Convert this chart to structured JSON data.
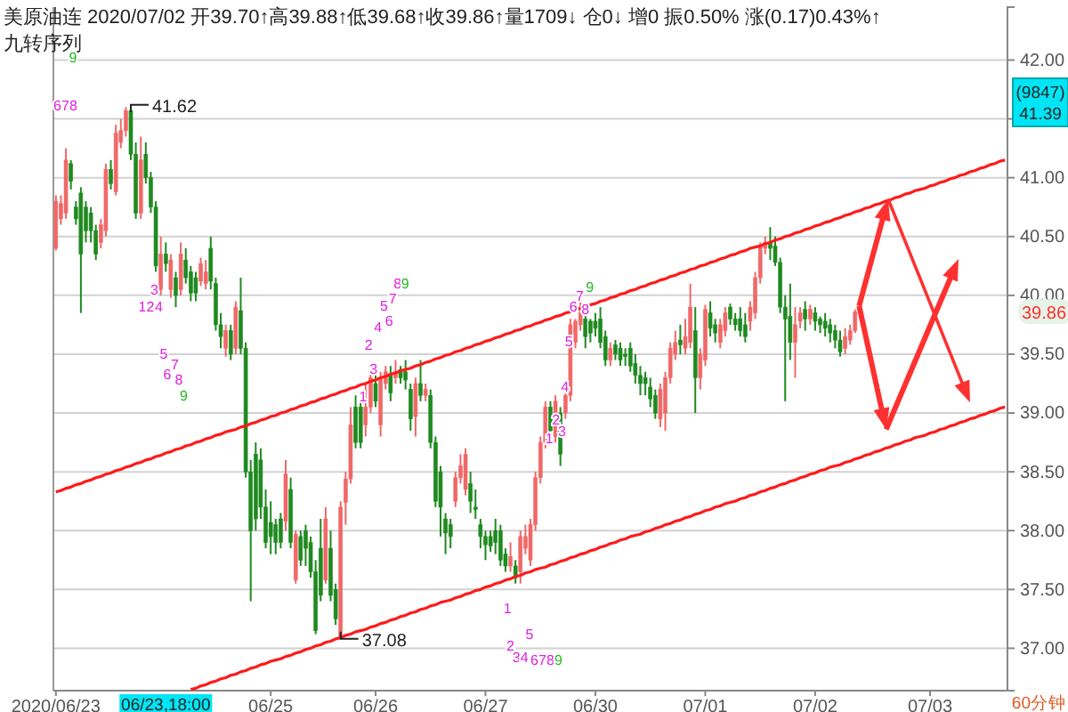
{
  "chart_data": {
    "type": "candlestick",
    "title": "美原油连 2020/07/02 开39.70↑高39.88↑低39.68↑收39.86↑量1709↓ 仓0↓ 增0 振0.50% 涨(0.17)0.43%↑",
    "subtitle": "九转序列",
    "categories": [
      "2020/06/23",
      null,
      null,
      null,
      null,
      null,
      null,
      null,
      null,
      null,
      null,
      null,
      null,
      null,
      null,
      null,
      null,
      null,
      null,
      null,
      null,
      null,
      null,
      null,
      null,
      null,
      null,
      null,
      null,
      null,
      null,
      null,
      null,
      null,
      null,
      null,
      null,
      null,
      null,
      null,
      null,
      null,
      null,
      "06/25",
      null,
      null,
      null,
      null,
      null,
      null,
      null,
      null,
      null,
      null,
      null,
      null,
      null,
      null,
      null,
      null,
      null,
      null,
      null,
      null,
      "06/26",
      null,
      null,
      null,
      null,
      null,
      null,
      null,
      null,
      null,
      null,
      null,
      null,
      null,
      null,
      null,
      null,
      null,
      null,
      null,
      null,
      null,
      "06/27",
      null,
      null,
      null,
      null,
      null,
      null,
      null,
      null,
      null,
      null,
      null,
      null,
      null,
      null,
      null,
      null,
      null,
      null,
      null,
      null,
      null,
      "06/30",
      null,
      null,
      null,
      null,
      null,
      null,
      null,
      null,
      null,
      null,
      null,
      null,
      null,
      null,
      null,
      null,
      null,
      null,
      null,
      null,
      null,
      "07/01",
      null,
      null,
      null,
      null,
      null,
      null,
      null,
      null,
      null,
      null,
      null,
      null,
      null,
      null,
      null,
      null,
      null,
      null,
      null,
      null,
      null,
      "07/02",
      null,
      null,
      null,
      null,
      null,
      null,
      null,
      null,
      null,
      null,
      null,
      null,
      null,
      null,
      null,
      null,
      null,
      null,
      null,
      null,
      null,
      null,
      "07/03",
      null,
      null,
      null,
      null,
      null,
      null,
      null,
      null,
      null,
      null,
      null,
      null,
      null,
      null,
      null
    ],
    "ohlc": [
      [
        40.4,
        40.85,
        40.38,
        40.8
      ],
      [
        40.65,
        40.85,
        40.6,
        40.78
      ],
      [
        40.7,
        41.25,
        40.65,
        41.15
      ],
      [
        41.12,
        41.15,
        40.9,
        40.97
      ],
      [
        40.75,
        40.8,
        40.6,
        40.65
      ],
      [
        40.87,
        40.92,
        39.85,
        40.35
      ],
      [
        40.75,
        40.8,
        40.45,
        40.55
      ],
      [
        40.7,
        40.75,
        40.45,
        40.55
      ],
      [
        40.55,
        40.6,
        40.3,
        40.35
      ],
      [
        40.45,
        40.65,
        40.4,
        40.6
      ],
      [
        40.55,
        41.12,
        40.5,
        41.07
      ],
      [
        41.07,
        41.15,
        40.9,
        40.95
      ],
      [
        40.88,
        41.45,
        40.85,
        41.38
      ],
      [
        41.3,
        41.5,
        41.25,
        41.4
      ],
      [
        41.4,
        41.6,
        41.35,
        41.57
      ],
      [
        41.57,
        41.62,
        41.15,
        41.2
      ],
      [
        41.2,
        41.3,
        40.65,
        40.7
      ],
      [
        40.7,
        41.35,
        40.65,
        41.15
      ],
      [
        41.2,
        41.3,
        40.95,
        41.0
      ],
      [
        41.0,
        41.05,
        40.7,
        40.75
      ],
      [
        40.75,
        40.8,
        40.2,
        40.25
      ],
      [
        40.05,
        40.5,
        40.0,
        40.35
      ],
      [
        40.35,
        40.45,
        40.2,
        40.27
      ],
      [
        40.05,
        40.35,
        39.98,
        40.3
      ],
      [
        40.15,
        40.2,
        39.9,
        40.0
      ],
      [
        40.05,
        40.45,
        40.0,
        40.35
      ],
      [
        40.3,
        40.4,
        40.1,
        40.15
      ],
      [
        40.2,
        40.25,
        39.95,
        40.02
      ],
      [
        40.15,
        40.2,
        39.95,
        40.02
      ],
      [
        40.12,
        40.32,
        40.08,
        40.27
      ],
      [
        40.1,
        40.3,
        40.05,
        40.2
      ],
      [
        40.4,
        40.5,
        40.05,
        40.12
      ],
      [
        40.1,
        40.15,
        39.7,
        39.75
      ],
      [
        39.75,
        39.85,
        39.55,
        39.65
      ],
      [
        39.55,
        39.75,
        39.48,
        39.7
      ],
      [
        39.7,
        39.75,
        39.45,
        39.5
      ],
      [
        39.55,
        39.95,
        39.5,
        39.9
      ],
      [
        39.87,
        40.15,
        39.5,
        39.55
      ],
      [
        39.55,
        39.6,
        38.45,
        38.5
      ],
      [
        38.5,
        38.6,
        37.4,
        38.0
      ],
      [
        38.65,
        38.75,
        38.0,
        38.1
      ],
      [
        38.6,
        38.7,
        38.1,
        38.2
      ],
      [
        38.2,
        38.35,
        37.85,
        37.9
      ],
      [
        38.07,
        38.25,
        37.8,
        37.95
      ],
      [
        38.05,
        38.1,
        37.8,
        37.9
      ],
      [
        38.1,
        38.15,
        37.85,
        37.9
      ],
      [
        38.08,
        38.6,
        38.0,
        38.48
      ],
      [
        38.35,
        38.45,
        37.85,
        37.9
      ],
      [
        37.58,
        38.0,
        37.55,
        37.97
      ],
      [
        37.95,
        38.0,
        37.7,
        37.75
      ],
      [
        38.0,
        38.05,
        37.7,
        37.85
      ],
      [
        37.9,
        37.95,
        37.6,
        37.65
      ],
      [
        37.65,
        37.75,
        37.12,
        37.15
      ],
      [
        37.85,
        38.1,
        37.4,
        37.45
      ],
      [
        37.58,
        38.2,
        37.55,
        38.1
      ],
      [
        37.85,
        38.0,
        37.4,
        37.45
      ],
      [
        37.5,
        37.55,
        37.2,
        37.25
      ],
      [
        37.1,
        38.25,
        37.08,
        38.2
      ],
      [
        38.24,
        38.5,
        38.05,
        38.44
      ],
      [
        38.44,
        39.05,
        38.4,
        38.9
      ],
      [
        39.05,
        39.15,
        38.7,
        38.75
      ],
      [
        39.05,
        39.1,
        38.7,
        38.75
      ],
      [
        38.9,
        39.25,
        38.8,
        39.05
      ],
      [
        39.05,
        39.35,
        39.0,
        39.3
      ],
      [
        39.25,
        39.32,
        39.05,
        39.1
      ],
      [
        38.9,
        39.35,
        38.8,
        39.3
      ],
      [
        39.25,
        39.4,
        39.2,
        39.35
      ],
      [
        39.32,
        39.4,
        39.1,
        39.17
      ],
      [
        39.3,
        39.45,
        39.25,
        39.35
      ],
      [
        39.37,
        39.4,
        39.25,
        39.3
      ],
      [
        39.35,
        39.45,
        39.2,
        39.28
      ],
      [
        39.2,
        39.25,
        38.85,
        38.95
      ],
      [
        38.97,
        39.3,
        38.8,
        39.25
      ],
      [
        39.25,
        39.45,
        39.1,
        39.15
      ],
      [
        39.15,
        39.25,
        39.1,
        39.2
      ],
      [
        39.15,
        39.2,
        38.7,
        38.75
      ],
      [
        38.75,
        38.8,
        38.2,
        38.25
      ],
      [
        38.5,
        38.55,
        37.95,
        38.2
      ],
      [
        38.1,
        38.15,
        37.8,
        37.98
      ],
      [
        38.05,
        38.1,
        37.85,
        37.95
      ],
      [
        38.25,
        38.5,
        38.2,
        38.45
      ],
      [
        38.45,
        38.65,
        38.4,
        38.55
      ],
      [
        38.35,
        38.7,
        38.3,
        38.65
      ],
      [
        38.4,
        38.5,
        38.15,
        38.25
      ],
      [
        38.2,
        38.35,
        38.1,
        38.18
      ],
      [
        38.05,
        38.1,
        37.85,
        37.95
      ],
      [
        37.95,
        38.0,
        37.75,
        37.88
      ],
      [
        37.95,
        38.0,
        37.82,
        37.87
      ],
      [
        38.0,
        38.1,
        37.8,
        37.9
      ],
      [
        38.0,
        38.05,
        37.7,
        37.75
      ],
      [
        37.8,
        37.85,
        37.65,
        37.7
      ],
      [
        37.7,
        37.9,
        37.65,
        37.78
      ],
      [
        37.7,
        37.75,
        37.55,
        37.6
      ],
      [
        37.65,
        38.0,
        37.55,
        37.95
      ],
      [
        37.85,
        38.05,
        37.8,
        37.95
      ],
      [
        37.75,
        38.1,
        37.7,
        38.05
      ],
      [
        38.05,
        38.5,
        38.0,
        38.45
      ],
      [
        38.45,
        38.8,
        38.4,
        38.75
      ],
      [
        38.75,
        39.1,
        38.7,
        39.05
      ],
      [
        39.05,
        39.1,
        38.8,
        38.85
      ],
      [
        38.8,
        39.15,
        38.75,
        39.1
      ],
      [
        39.0,
        39.05,
        38.55,
        38.65
      ],
      [
        39.0,
        39.2,
        38.95,
        39.15
      ],
      [
        39.15,
        39.8,
        39.1,
        39.75
      ],
      [
        39.6,
        39.8,
        39.55,
        39.78
      ],
      [
        39.75,
        39.95,
        39.7,
        39.85
      ],
      [
        39.8,
        39.85,
        39.55,
        39.65
      ],
      [
        39.78,
        39.8,
        39.6,
        39.68
      ],
      [
        39.78,
        39.85,
        39.65,
        39.72
      ],
      [
        39.8,
        39.9,
        39.55,
        39.6
      ],
      [
        39.65,
        39.7,
        39.4,
        39.45
      ],
      [
        39.45,
        39.6,
        39.4,
        39.55
      ],
      [
        39.58,
        39.62,
        39.45,
        39.5
      ],
      [
        39.55,
        39.6,
        39.4,
        39.45
      ],
      [
        39.5,
        39.55,
        39.4,
        39.48
      ],
      [
        39.55,
        39.6,
        39.35,
        39.4
      ],
      [
        39.42,
        39.5,
        39.25,
        39.32
      ],
      [
        39.32,
        39.4,
        39.15,
        39.25
      ],
      [
        39.3,
        39.35,
        39.15,
        39.25
      ],
      [
        39.22,
        39.3,
        39.05,
        39.12
      ],
      [
        39.15,
        39.2,
        38.95,
        39.0
      ],
      [
        38.95,
        39.25,
        38.88,
        39.2
      ],
      [
        39.0,
        39.35,
        38.85,
        39.3
      ],
      [
        39.3,
        39.6,
        39.25,
        39.55
      ],
      [
        39.5,
        39.7,
        39.45,
        39.6
      ],
      [
        39.62,
        39.75,
        39.5,
        39.58
      ],
      [
        39.55,
        39.8,
        39.5,
        39.65
      ],
      [
        39.6,
        40.1,
        39.55,
        39.9
      ],
      [
        39.7,
        39.9,
        39.0,
        39.3
      ],
      [
        39.3,
        39.55,
        39.2,
        39.5
      ],
      [
        39.45,
        39.92,
        39.4,
        39.88
      ],
      [
        39.85,
        39.95,
        39.65,
        39.72
      ],
      [
        39.75,
        39.8,
        39.6,
        39.68
      ],
      [
        39.6,
        39.8,
        39.55,
        39.75
      ],
      [
        39.7,
        39.9,
        39.65,
        39.85
      ],
      [
        39.9,
        39.93,
        39.75,
        39.8
      ],
      [
        39.8,
        39.85,
        39.7,
        39.75
      ],
      [
        39.8,
        39.9,
        39.65,
        39.7
      ],
      [
        39.75,
        39.85,
        39.6,
        39.65
      ],
      [
        39.78,
        39.95,
        39.7,
        39.9
      ],
      [
        39.85,
        40.2,
        39.8,
        40.15
      ],
      [
        40.15,
        40.45,
        40.1,
        40.42
      ],
      [
        40.4,
        40.5,
        40.35,
        40.45
      ],
      [
        40.45,
        40.58,
        40.3,
        40.4
      ],
      [
        40.42,
        40.5,
        40.25,
        40.28
      ],
      [
        40.28,
        40.32,
        39.85,
        39.9
      ],
      [
        39.9,
        40.0,
        39.1,
        39.8
      ],
      [
        39.82,
        40.1,
        39.45,
        39.6
      ],
      [
        39.6,
        39.9,
        39.3,
        39.75
      ],
      [
        39.78,
        39.9,
        39.72,
        39.85
      ],
      [
        39.88,
        39.95,
        39.7,
        39.8
      ],
      [
        39.8,
        39.92,
        39.75,
        39.88
      ],
      [
        39.85,
        39.9,
        39.7,
        39.78
      ],
      [
        39.8,
        39.82,
        39.68,
        39.75
      ],
      [
        39.78,
        39.85,
        39.65,
        39.72
      ],
      [
        39.75,
        39.8,
        39.6,
        39.68
      ],
      [
        39.7,
        39.75,
        39.55,
        39.62
      ],
      [
        39.62,
        39.7,
        39.48,
        39.52
      ],
      [
        39.55,
        39.72,
        39.5,
        39.65
      ],
      [
        39.62,
        39.75,
        39.58,
        39.7
      ],
      [
        39.7,
        39.88,
        39.68,
        39.86
      ],
      null,
      null,
      null,
      null,
      null,
      null,
      null,
      null,
      null,
      null,
      null,
      null,
      null,
      null,
      null,
      null,
      null,
      null,
      null,
      null,
      null,
      null,
      null,
      null,
      null,
      null,
      null,
      null,
      null,
      null
    ],
    "series": [
      {
        "type": "line",
        "color": "#ff1a1a",
        "values": [
          38.33,
          38.34,
          38.36,
          38.37,
          38.39,
          38.4,
          38.42,
          38.43,
          38.45,
          38.46,
          38.48,
          38.49,
          38.51,
          38.52,
          38.54,
          38.55,
          38.57,
          38.58,
          38.6,
          38.61,
          38.63,
          38.64,
          38.66,
          38.67,
          38.69,
          38.7,
          38.72,
          38.73,
          38.75,
          38.76,
          38.78,
          38.79,
          38.81,
          38.82,
          38.84,
          38.85,
          38.86,
          38.88,
          38.89,
          38.91,
          38.92,
          38.94,
          38.95,
          38.97,
          38.98,
          39.0,
          39.01,
          39.03,
          39.04,
          39.06,
          39.07,
          39.09,
          39.1,
          39.12,
          39.13,
          39.15,
          39.16,
          39.18,
          39.19,
          39.21,
          39.22,
          39.24,
          39.25,
          39.27,
          39.28,
          39.3,
          39.31,
          39.33,
          39.34,
          39.36,
          39.37,
          39.38,
          39.4,
          39.41,
          39.43,
          39.44,
          39.46,
          39.47,
          39.49,
          39.5,
          39.52,
          39.53,
          39.55,
          39.56,
          39.58,
          39.59,
          39.61,
          39.62,
          39.64,
          39.65,
          39.67,
          39.68,
          39.7,
          39.71,
          39.73,
          39.74,
          39.76,
          39.77,
          39.79,
          39.8,
          39.82,
          39.83,
          39.85,
          39.86,
          39.88,
          39.89,
          39.9,
          39.92,
          39.93,
          39.95,
          39.96,
          39.98,
          39.99,
          40.01,
          40.02,
          40.04,
          40.05,
          40.07,
          40.08,
          40.1,
          40.11,
          40.13,
          40.14,
          40.16,
          40.17,
          40.19,
          40.2,
          40.22,
          40.23,
          40.25,
          40.26,
          40.28,
          40.29,
          40.31,
          40.32,
          40.34,
          40.35,
          40.37,
          40.38,
          40.4,
          40.41,
          40.42,
          40.44,
          40.45,
          40.47,
          40.48,
          40.5,
          40.51,
          40.53,
          40.54,
          40.56,
          40.57,
          40.59,
          40.6,
          40.62,
          40.63,
          40.65,
          40.66,
          40.68,
          40.69,
          40.71,
          40.72,
          40.74,
          40.75,
          40.77,
          40.78,
          40.8,
          40.81,
          40.83,
          40.84,
          40.86,
          40.87,
          40.89,
          40.9,
          40.91,
          40.93,
          40.94,
          40.96,
          40.97,
          40.99,
          41.0,
          41.02,
          41.03,
          41.05,
          41.06,
          41.08,
          41.09,
          41.11,
          41.12,
          41.14,
          41.15
        ]
      },
      {
        "type": "line",
        "color": "#ff1a1a",
        "values": [
          null,
          null,
          null,
          null,
          null,
          null,
          null,
          null,
          null,
          null,
          null,
          null,
          null,
          null,
          null,
          null,
          null,
          null,
          null,
          null,
          null,
          null,
          null,
          null,
          null,
          null,
          null,
          36.65,
          36.66,
          36.68,
          36.69,
          36.71,
          36.72,
          36.74,
          36.75,
          36.77,
          36.78,
          36.8,
          36.81,
          36.83,
          36.84,
          36.86,
          36.87,
          36.89,
          36.9,
          36.91,
          36.93,
          36.94,
          36.96,
          36.97,
          36.99,
          37.0,
          37.02,
          37.03,
          37.05,
          37.06,
          37.08,
          37.09,
          37.11,
          37.12,
          37.14,
          37.15,
          37.16,
          37.18,
          37.19,
          37.21,
          37.22,
          37.24,
          37.25,
          37.27,
          37.28,
          37.3,
          37.31,
          37.33,
          37.34,
          37.36,
          37.37,
          37.39,
          37.4,
          37.41,
          37.43,
          37.44,
          37.46,
          37.47,
          37.49,
          37.5,
          37.52,
          37.53,
          37.55,
          37.56,
          37.58,
          37.59,
          37.61,
          37.62,
          37.64,
          37.65,
          37.67,
          37.68,
          37.69,
          37.71,
          37.72,
          37.74,
          37.75,
          37.77,
          37.78,
          37.8,
          37.81,
          37.83,
          37.84,
          37.86,
          37.87,
          37.89,
          37.9,
          37.92,
          37.93,
          37.95,
          37.96,
          37.97,
          37.99,
          38.0,
          38.02,
          38.03,
          38.05,
          38.06,
          38.08,
          38.09,
          38.11,
          38.12,
          38.14,
          38.15,
          38.17,
          38.18,
          38.2,
          38.21,
          38.23,
          38.24,
          38.25,
          38.27,
          38.28,
          38.3,
          38.31,
          38.33,
          38.34,
          38.36,
          38.37,
          38.39,
          38.4,
          38.42,
          38.43,
          38.45,
          38.46,
          38.48,
          38.49,
          38.51,
          38.52,
          38.54,
          38.55,
          38.56,
          38.58,
          38.59,
          38.61,
          38.62,
          38.64,
          38.65,
          38.67,
          38.68,
          38.7,
          38.71,
          38.73,
          38.74,
          38.76,
          38.77,
          38.79,
          38.8,
          38.81,
          38.83,
          38.84,
          38.86,
          38.87,
          38.89,
          38.9,
          38.92,
          38.93,
          38.95,
          38.96,
          38.98,
          38.99,
          39.01,
          39.02,
          39.04,
          39.05
        ]
      }
    ],
    "ylim": [
      36.64,
      42.45
    ],
    "yticks": [
      {
        "value": 37,
        "label": "37.00"
      },
      {
        "value": 37.5,
        "label": "37.50"
      },
      {
        "value": 38,
        "label": "38.00"
      },
      {
        "value": 38.5,
        "label": "38.50"
      },
      {
        "value": 39,
        "label": "39.00"
      },
      {
        "value": 39.5,
        "label": "39.50"
      },
      {
        "value": 40,
        "label": "40.00"
      },
      {
        "value": 40.5,
        "label": "40.50"
      },
      {
        "value": 41,
        "label": "41.00"
      },
      {
        "value": 41.5,
        "label": null
      },
      {
        "value": 42,
        "label": "42.00"
      }
    ],
    "grid": "y",
    "annotations": [
      "41.62",
      "37.08",
      "39.86",
      "06/23,18:00",
      "(9847)",
      "41.39",
      "60分钟",
      "6",
      "7",
      "8",
      "9",
      "1",
      "2",
      "3",
      "4",
      "5",
      "6",
      "7",
      "8",
      "9",
      "1",
      "2",
      "3",
      "4",
      "5",
      "6",
      "7",
      "8",
      "9",
      "1",
      "2",
      "3",
      "4",
      "5",
      "6",
      "7",
      "8",
      "9",
      "1",
      "2",
      "3",
      "4",
      "5",
      "6",
      "7",
      "8",
      "9"
    ]
  }
}
